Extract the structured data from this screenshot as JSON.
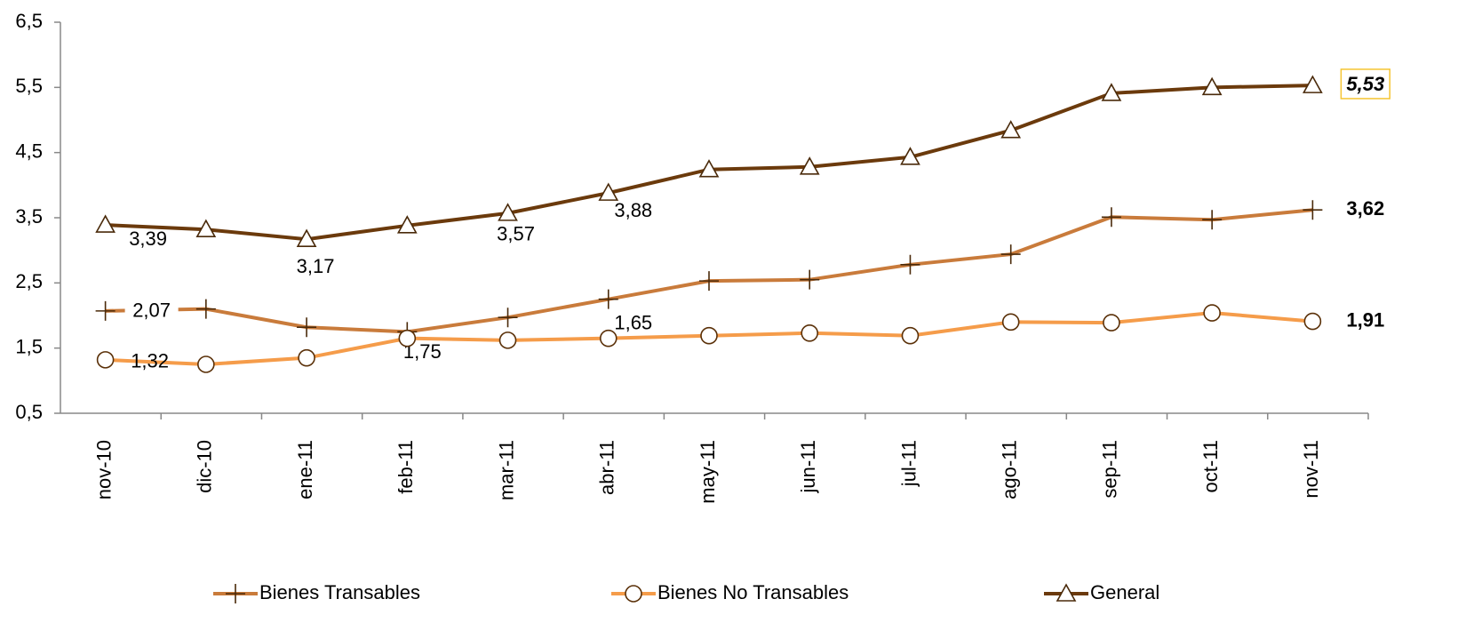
{
  "chart_data": {
    "type": "line",
    "categories": [
      "nov-10",
      "dic-10",
      "ene-11",
      "feb-11",
      "mar-11",
      "abr-11",
      "may-11",
      "jun-11",
      "jul-11",
      "ago-11",
      "sep-11",
      "oct-11",
      "nov-11"
    ],
    "series": [
      {
        "name": "Bienes Transables",
        "color": "#c97b3b",
        "marker": "plus",
        "values": [
          2.07,
          2.1,
          1.82,
          1.75,
          1.97,
          2.25,
          2.53,
          2.55,
          2.78,
          2.94,
          3.51,
          3.47,
          3.62
        ],
        "value_labels": [
          "2,07",
          null,
          null,
          "1,75",
          null,
          null,
          null,
          null,
          null,
          null,
          null,
          null,
          "3,62"
        ]
      },
      {
        "name": "Bienes No Transables",
        "color": "#f59c4a",
        "marker": "circle",
        "values": [
          1.32,
          1.25,
          1.35,
          1.65,
          1.62,
          1.65,
          1.69,
          1.73,
          1.69,
          1.9,
          1.89,
          2.04,
          1.91
        ],
        "value_labels": [
          "1,32",
          null,
          null,
          null,
          null,
          "1,65",
          null,
          null,
          null,
          null,
          null,
          null,
          "1,91"
        ]
      },
      {
        "name": "General",
        "color": "#6b3a0c",
        "marker": "triangle",
        "values": [
          3.39,
          3.32,
          3.17,
          3.38,
          3.57,
          3.88,
          4.24,
          4.28,
          4.43,
          4.84,
          5.41,
          5.5,
          5.53
        ],
        "value_labels": [
          "3,39",
          null,
          "3,17",
          null,
          "3,57",
          "3,88",
          null,
          null,
          null,
          null,
          null,
          null,
          "5,53"
        ]
      }
    ],
    "ylim": [
      0.5,
      6.5
    ],
    "yticks": [
      {
        "value": 0.5,
        "label": "0,5"
      },
      {
        "value": 1.5,
        "label": "1,5"
      },
      {
        "value": 2.5,
        "label": "2,5"
      },
      {
        "value": 3.5,
        "label": "3,5"
      },
      {
        "value": 4.5,
        "label": "4,5"
      },
      {
        "value": 5.5,
        "label": "5,5"
      },
      {
        "value": 6.5,
        "label": "6,5"
      }
    ],
    "legend": "bottom"
  }
}
